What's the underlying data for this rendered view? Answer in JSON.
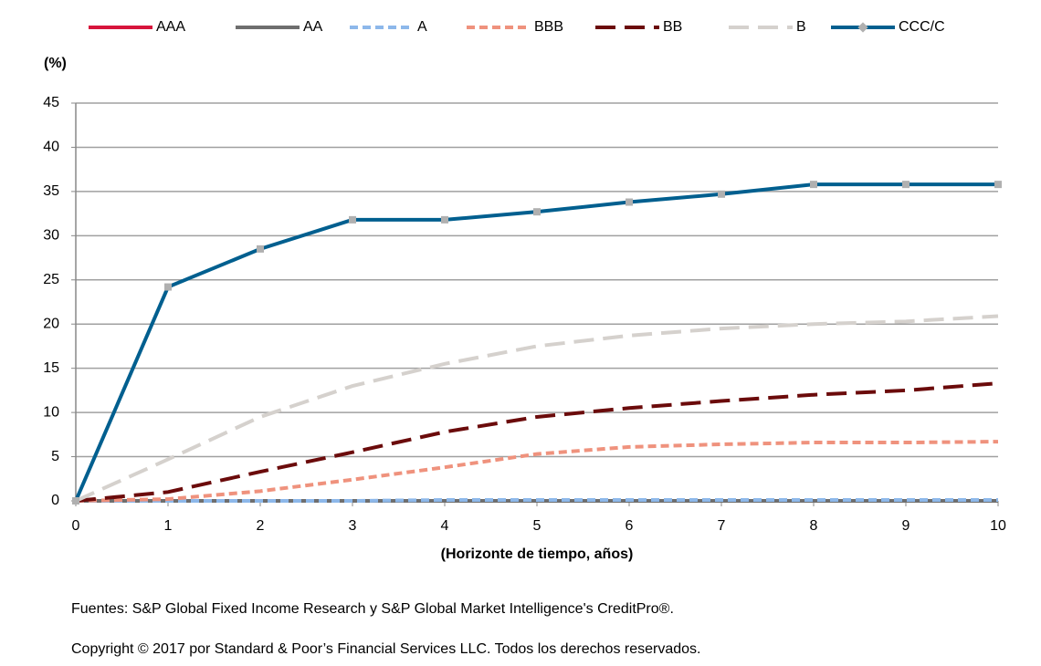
{
  "chart_data": {
    "type": "line",
    "y_label": "(%)",
    "x_label": "(Horizonte de tiempo, años)",
    "x": [
      0,
      1,
      2,
      3,
      4,
      5,
      6,
      7,
      8,
      9,
      10
    ],
    "series": [
      {
        "name": "AAA",
        "color": "#d7143c",
        "dash": "solid",
        "values": [
          0,
          0,
          0,
          0,
          0,
          0,
          0,
          0,
          0,
          0,
          0
        ]
      },
      {
        "name": "AA",
        "color": "#6e6e6e",
        "dash": "solid",
        "values": [
          0,
          0,
          0,
          0,
          0,
          0,
          0,
          0,
          0,
          0,
          0
        ]
      },
      {
        "name": "A",
        "color": "#8db8ea",
        "dash": "dashed",
        "values": [
          0,
          0,
          0,
          0,
          0.1,
          0.1,
          0.1,
          0.1,
          0.1,
          0.1,
          0.1
        ]
      },
      {
        "name": "BBB",
        "color": "#ef927d",
        "dash": "dashed",
        "values": [
          0,
          0.2,
          1.1,
          2.4,
          3.8,
          5.3,
          6.1,
          6.4,
          6.6,
          6.6,
          6.7
        ]
      },
      {
        "name": "BB",
        "color": "#6b0b0b",
        "dash": "longdash",
        "values": [
          0,
          1,
          3.3,
          5.5,
          7.8,
          9.5,
          10.5,
          11.3,
          12,
          12.5,
          13.3
        ]
      },
      {
        "name": "B",
        "color": "#d5d1cd",
        "dash": "longdash",
        "values": [
          0,
          4.7,
          9.5,
          13,
          15.5,
          17.5,
          18.7,
          19.5,
          20,
          20.3,
          20.9
        ]
      },
      {
        "name": "CCC/C",
        "color": "#005f8f",
        "dash": "solid",
        "markers": true,
        "values": [
          0,
          24.2,
          28.5,
          31.8,
          31.8,
          32.7,
          33.8,
          34.7,
          35.8,
          35.8,
          35.8
        ]
      }
    ],
    "xlim": [
      0,
      10
    ],
    "xticks": [
      0,
      1,
      2,
      3,
      4,
      5,
      6,
      7,
      8,
      9,
      10
    ],
    "ylim": [
      0,
      45
    ],
    "yticks": [
      0,
      5,
      10,
      15,
      20,
      25,
      30,
      35,
      40,
      45
    ],
    "grid": true,
    "legend": "top",
    "source": "Fuentes: S&P Global Fixed Income Research y S&P Global Market Intelligence's CreditPro®.",
    "copyright": "Copyright © 2017 por Standard & Poor’s Financial Services LLC. Todos los derechos reservados."
  }
}
